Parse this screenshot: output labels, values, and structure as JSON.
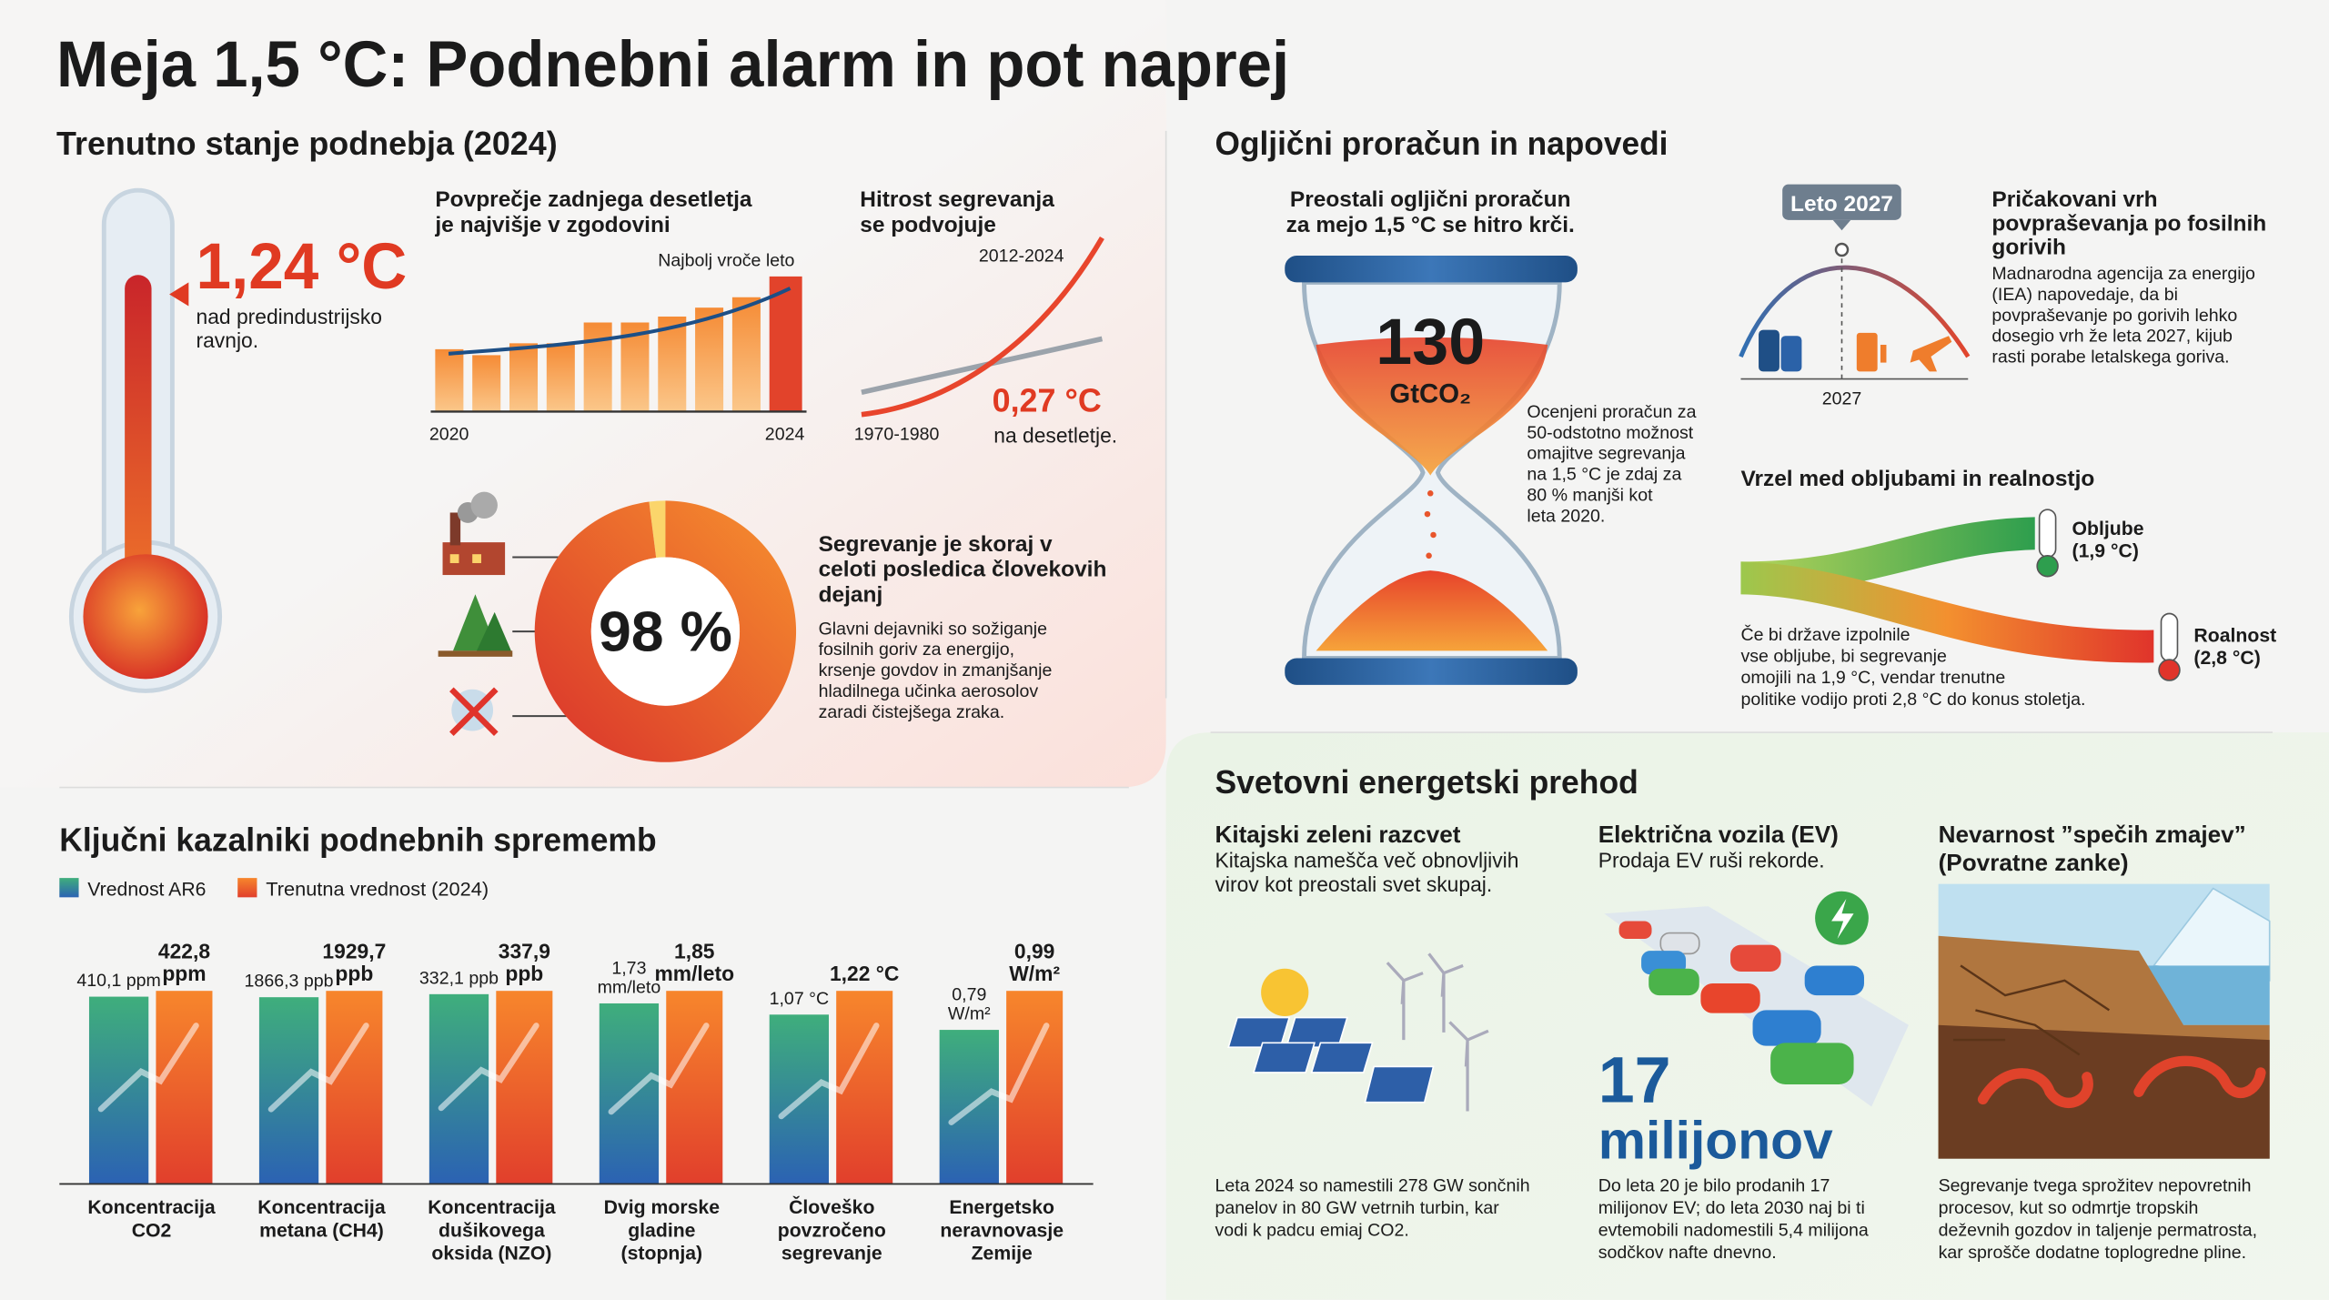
{
  "title": "Meja 1,5 °C: Podnebni alarm in pot naprej",
  "current": {
    "heading": "Trenutno stanje podnebja (2024)",
    "temperature": "1,24 °C",
    "temperature_caption": [
      "nad predindustrijsko",
      "ravnjo."
    ],
    "decade_title": [
      "Povprečje zadnjega desetletja",
      "je najvišje v zgodovini"
    ],
    "decade_note": "Najbolj vroče leto",
    "decade_start": "2020",
    "decade_end": "2024",
    "rate_title": [
      "Hitrost segrevanja",
      "se podvojuje"
    ],
    "rate_recent": "2012-2024",
    "rate_early": "1970-1980",
    "rate_value": "0,27 °C",
    "rate_caption": "na desetletje.",
    "human_share": {
      "value": 98,
      "label": "98 %"
    },
    "human_title": [
      "Segrevanje je skoraj v",
      "celoti posledica človekovih",
      "dejanj"
    ],
    "human_text": [
      "Glavni dejavniki so sožiganje",
      "fosilnih goriv za energijo,",
      "krsenje govdov in zmanjšanje",
      "hladilnega učinka aerosolov",
      "zaradi čistejšega zraka."
    ]
  },
  "budget": {
    "heading": "Ogljični proračun in napovedi",
    "hourglass_title": [
      "Preostali ogljični proračun",
      "za mejo 1,5 °C se hitro krči."
    ],
    "remaining": 130,
    "unit": "GtCO₂",
    "remaining_text": [
      "Ocenjeni proračun za",
      "50-odstotno možnost",
      "omajitve segrevanja",
      "na 1,5 °C je zdaj za",
      "80 % manjši kot",
      "leta 2020."
    ],
    "peak_marker": "Leto 2027",
    "peak_year": "2027",
    "peak_title": [
      "Pričakovani vrh",
      "povpraševanja po fosilnih",
      "gorivih"
    ],
    "peak_text": [
      "Madnarodna agencija za energijo",
      "(IEA) napovedaje, da bi",
      "povpraševanje po gorivih lehko",
      "dosegio vrh že leta 2027, kijub",
      "rasti porabe letalskega goriva."
    ],
    "gap_title": "Vrzel med obljubami in realnostjo",
    "pledges": [
      "Obljube",
      "(1,9 °C)"
    ],
    "reality": [
      "Roalnost",
      "(2,8 °C)"
    ],
    "gap_text": [
      "Če bi države izpolnile",
      "vse obljube, bi segrevanje",
      "omojili na 1,9 °C, vendar trenutne",
      "politike vodijo proti 2,8 °C do konus stoletja."
    ]
  },
  "indicators": {
    "heading": "Ključni kazalniki podnebnih sprememb",
    "series": [
      {
        "name": "Vrednost AR6",
        "colors": [
          "#3fae7c",
          "#2b62b3"
        ]
      },
      {
        "name": "Trenutna vrednost (2024)",
        "colors": [
          "#f7862c",
          "#e13f2c"
        ]
      }
    ],
    "items": [
      {
        "name": [
          "Koncentracija",
          "CO2"
        ],
        "values": [
          410.1,
          422.8
        ],
        "value_labels": [
          [
            "410,1 ppm"
          ],
          [
            "422,8",
            "ppm"
          ]
        ]
      },
      {
        "name": [
          "Koncentracija",
          "metana (CH4)"
        ],
        "values": [
          1866.3,
          1929.7
        ],
        "value_labels": [
          [
            "1866,3 ppb"
          ],
          [
            "1929,7",
            "ppb"
          ]
        ]
      },
      {
        "name": [
          "Koncentracija",
          "dušikovega",
          "oksida (NZO)"
        ],
        "values": [
          332.1,
          337.9
        ],
        "value_labels": [
          [
            "332,1 ppb"
          ],
          [
            "337,9",
            "ppb"
          ]
        ]
      },
      {
        "name": [
          "Dvig morske",
          "gladine",
          "(stopnja)"
        ],
        "values": [
          1.73,
          1.85
        ],
        "value_labels": [
          [
            "1,73",
            "mm/leto"
          ],
          [
            "1,85",
            "mm/leto"
          ]
        ]
      },
      {
        "name": [
          "Človeško",
          "povzročeno",
          "segrevanje"
        ],
        "values": [
          1.07,
          1.22
        ],
        "value_labels": [
          [
            "1,07 °C"
          ],
          [
            "1,22 °C"
          ]
        ]
      },
      {
        "name": [
          "Energetsko",
          "neravnovasje",
          "Zemije"
        ],
        "values": [
          0.79,
          0.99
        ],
        "value_labels": [
          [
            "0,79",
            "W/m²"
          ],
          [
            "0,99",
            "W/m²"
          ]
        ]
      }
    ]
  },
  "energy": {
    "heading": "Svetovni energetski prehod",
    "china_title": "Kitajski zeleni razcvet",
    "china_sub": [
      "Kitajska namešča več obnovljivih",
      "virov kot preostali svet skupaj."
    ],
    "china_text": [
      "Leta 2024 so namestili 278 GW sončnih",
      "panelov in 80 GW vetrnih turbin, kar",
      "vodi k padcu emiaj CO2."
    ],
    "ev_title": "Električna vozila (EV)",
    "ev_sub": "Prodaja EV ruši rekorde.",
    "ev_count": 17,
    "ev_unit": "milijonov",
    "ev_text": [
      "Do leta 20 je bilo prodanih 17",
      "milijonov EV; do leta 2030 naj bi ti",
      "evtemobili nadomestili 5,4 milijona",
      "sodčkov nafte dnevno."
    ],
    "feedback_title": [
      "Nevarnost ”spečih zmajev”",
      "(Povratne zanke)"
    ],
    "feedback_text": [
      "Segrevanje tvega sprožitev nepovretnih",
      "procesov, kut so odmrtje tropskih",
      "deževnih gozdov in taljenje permatrosta,",
      "kar sprošče dodatne toplogredne pline."
    ]
  }
}
